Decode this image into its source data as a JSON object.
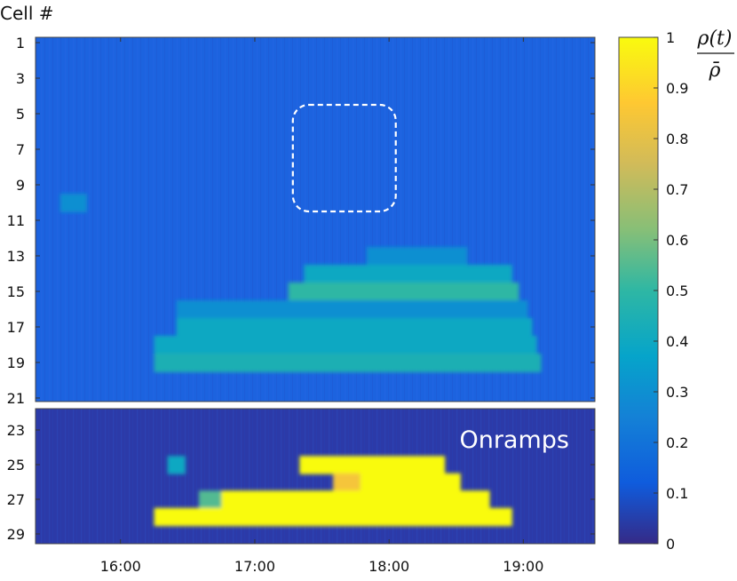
{
  "chart_data": {
    "type": "heatmap",
    "ylabel": "Cell #",
    "xlabel": "",
    "colorbar": {
      "label_numerator": "ρ(t)",
      "label_denominator": "ρ̄",
      "range": [
        0,
        1
      ],
      "ticks": [
        "0",
        "0.1",
        "0.2",
        "0.3",
        "0.4",
        "0.5",
        "0.6",
        "0.7",
        "0.8",
        "0.9",
        "1"
      ],
      "colormap": "parula",
      "colors": [
        "#352a87",
        "#0f5cdd",
        "#1481d6",
        "#06a4ca",
        "#2eb7a4",
        "#87bf77",
        "#d1bb59",
        "#fec832",
        "#f9fb0e"
      ]
    },
    "x_ticks": [
      "16:00",
      "17:00",
      "18:00",
      "19:00"
    ],
    "y_ticks_main": [
      "1",
      "3",
      "5",
      "7",
      "9",
      "11",
      "13",
      "15",
      "17",
      "19",
      "21"
    ],
    "y_ticks_onramps": [
      "23",
      "25",
      "27",
      "29"
    ],
    "main_panel": {
      "cells": [
        1,
        21
      ],
      "time_range": [
        "15:22",
        "19:32"
      ],
      "background_density": 0.12,
      "congestion_rows": [
        {
          "cell": 10,
          "start": "15:33",
          "end": "15:45",
          "value": 0.3
        },
        {
          "cell": 13,
          "start": "17:50",
          "end": "18:35",
          "value": 0.3
        },
        {
          "cell": 14,
          "start": "17:22",
          "end": "18:55",
          "value": 0.4
        },
        {
          "cell": 15,
          "start": "17:15",
          "end": "18:58",
          "value": 0.5
        },
        {
          "cell": 16,
          "start": "16:25",
          "end": "19:02",
          "value": 0.3
        },
        {
          "cell": 17,
          "start": "16:25",
          "end": "19:04",
          "value": 0.4
        },
        {
          "cell": 18,
          "start": "16:15",
          "end": "19:06",
          "value": 0.4
        },
        {
          "cell": 19,
          "start": "16:15",
          "end": "19:08",
          "value": 0.45
        }
      ],
      "highlight_box": {
        "cells": [
          5,
          10
        ],
        "time": [
          "17:17",
          "18:03"
        ]
      }
    },
    "onramps_panel": {
      "label": "Onramps",
      "cells": [
        22,
        29
      ],
      "background_density": 0.05,
      "blocks": [
        {
          "cell": 25,
          "start": "16:21",
          "end": "16:29",
          "value": 0.4
        },
        {
          "cell": 25,
          "start": "17:20",
          "end": "18:25",
          "value": 1.0
        },
        {
          "cell": 26,
          "start": "17:47",
          "end": "18:32",
          "value": 1.0
        },
        {
          "cell": 26,
          "start": "17:35",
          "end": "17:47",
          "value": 0.85
        },
        {
          "cell": 27,
          "start": "16:45",
          "end": "18:45",
          "value": 1.0
        },
        {
          "cell": 27,
          "start": "16:35",
          "end": "16:45",
          "value": 0.55
        },
        {
          "cell": 28,
          "start": "16:15",
          "end": "18:55",
          "value": 1.0
        }
      ]
    }
  }
}
